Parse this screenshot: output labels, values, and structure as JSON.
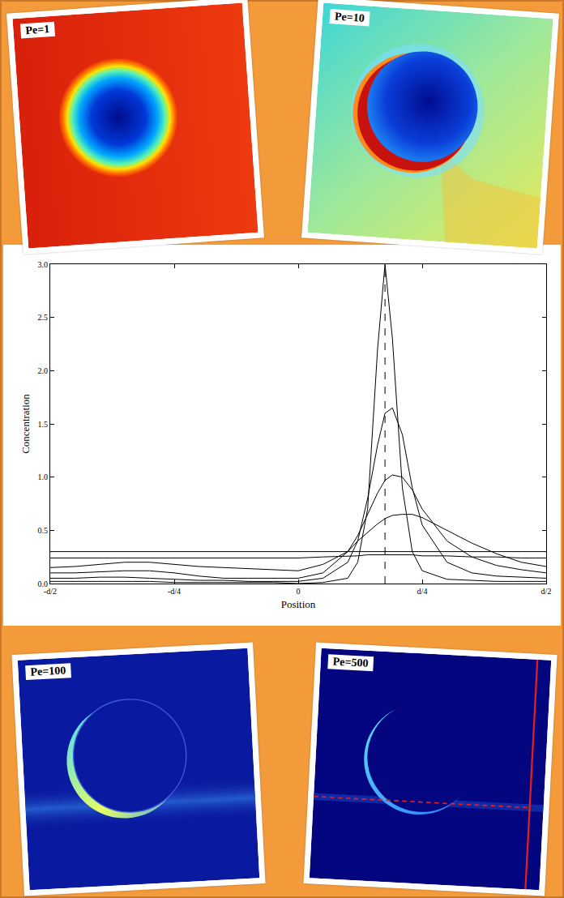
{
  "chart_data": {
    "type": "line",
    "x_label": "Position",
    "y_label": "Concentration",
    "xlim": [
      -0.5,
      0.5
    ],
    "ylim": [
      0,
      3
    ],
    "xticks": [
      {
        "value": -0.5,
        "label": "-d/2"
      },
      {
        "value": -0.25,
        "label": "-d/4"
      },
      0,
      {
        "value": 0.25,
        "label": "d/4"
      },
      {
        "value": 0.5,
        "label": "d/2"
      }
    ],
    "yticks": [
      {
        "value": 0,
        "label": "0.0"
      },
      {
        "value": 0.5,
        "label": "0.5"
      },
      {
        "value": 1,
        "label": "1.0"
      },
      {
        "value": 1.5,
        "label": "1.5"
      },
      {
        "value": 2,
        "label": "2.0"
      },
      {
        "value": 2.5,
        "label": "2.5"
      },
      {
        "value": 3,
        "label": "3.0"
      }
    ],
    "grid": false,
    "reference_line": {
      "x": 0.175,
      "line_style": "dashed"
    },
    "x": [
      -0.5,
      -0.45,
      -0.4,
      -0.35,
      -0.3,
      -0.25,
      -0.2,
      -0.15,
      -0.1,
      -0.05,
      0,
      0.05,
      0.1,
      0.12,
      0.14,
      0.16,
      0.175,
      0.19,
      0.21,
      0.23,
      0.25,
      0.3,
      0.35,
      0.4,
      0.45,
      0.5
    ],
    "series": [
      {
        "color": "#000000",
        "values": [
          0.02,
          0.02,
          0.02,
          0.02,
          0.02,
          0.01,
          0.01,
          0.01,
          0.01,
          0.01,
          0.0,
          0.01,
          0.05,
          0.2,
          0.7,
          2.2,
          3.0,
          2.3,
          0.9,
          0.3,
          0.12,
          0.04,
          0.03,
          0.02,
          0.02,
          0.02
        ]
      },
      {
        "color": "#000000",
        "values": [
          0.05,
          0.05,
          0.06,
          0.06,
          0.05,
          0.04,
          0.03,
          0.03,
          0.02,
          0.02,
          0.02,
          0.05,
          0.2,
          0.4,
          0.8,
          1.3,
          1.6,
          1.65,
          1.4,
          0.9,
          0.55,
          0.2,
          0.1,
          0.07,
          0.06,
          0.05
        ]
      },
      {
        "color": "#000000",
        "values": [
          0.1,
          0.1,
          0.11,
          0.12,
          0.12,
          0.1,
          0.07,
          0.05,
          0.05,
          0.05,
          0.05,
          0.1,
          0.3,
          0.45,
          0.65,
          0.85,
          0.97,
          1.02,
          1.0,
          0.88,
          0.7,
          0.4,
          0.25,
          0.17,
          0.13,
          0.1
        ]
      },
      {
        "color": "#000000",
        "values": [
          0.15,
          0.16,
          0.18,
          0.2,
          0.2,
          0.18,
          0.16,
          0.15,
          0.14,
          0.13,
          0.12,
          0.18,
          0.3,
          0.4,
          0.48,
          0.56,
          0.61,
          0.64,
          0.65,
          0.65,
          0.62,
          0.5,
          0.38,
          0.28,
          0.2,
          0.16
        ]
      },
      {
        "color": "#000000",
        "values": [
          0.24,
          0.24,
          0.24,
          0.24,
          0.24,
          0.24,
          0.24,
          0.24,
          0.24,
          0.24,
          0.24,
          0.25,
          0.26,
          0.26,
          0.27,
          0.27,
          0.27,
          0.27,
          0.27,
          0.27,
          0.26,
          0.26,
          0.25,
          0.25,
          0.24,
          0.24
        ]
      },
      {
        "color": "#000000",
        "values": [
          0.3,
          0.3,
          0.3,
          0.3,
          0.3,
          0.3,
          0.3,
          0.3,
          0.3,
          0.3,
          0.3,
          0.3,
          0.3,
          0.3,
          0.3,
          0.3,
          0.3,
          0.3,
          0.3,
          0.3,
          0.3,
          0.3,
          0.3,
          0.3,
          0.3,
          0.3
        ]
      }
    ]
  },
  "panels": [
    {
      "label": "Pe=1"
    },
    {
      "label": "Pe=10"
    },
    {
      "label": "Pe=100"
    },
    {
      "label": "Pe=500"
    }
  ]
}
